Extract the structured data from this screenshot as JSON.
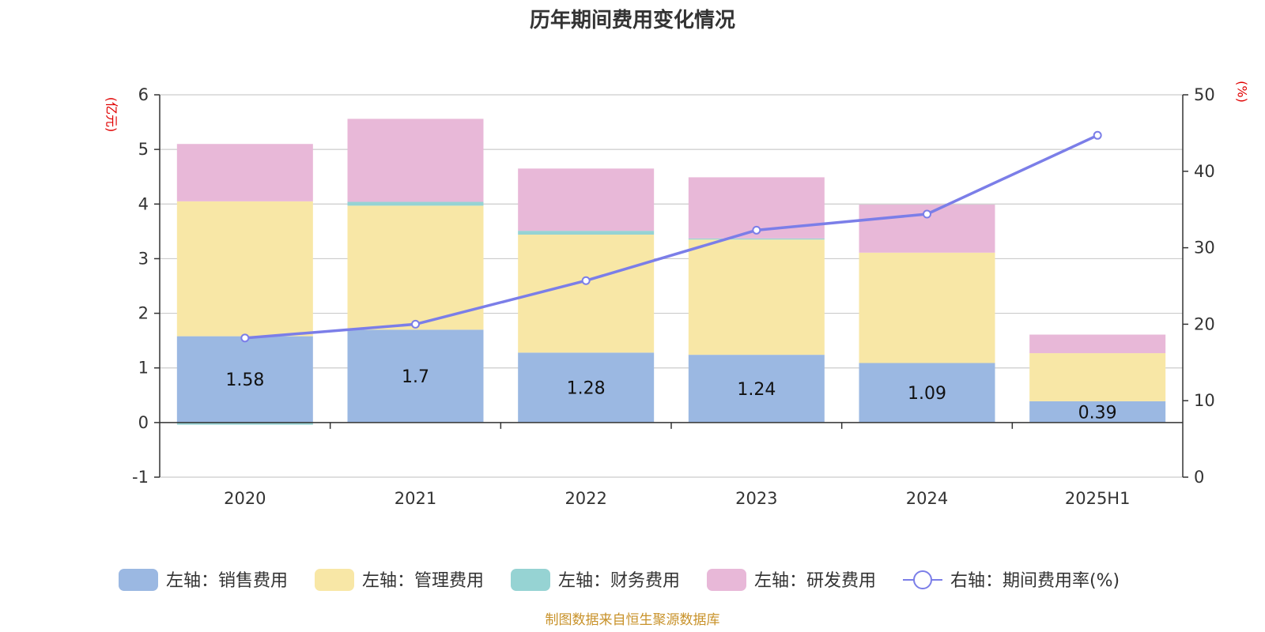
{
  "chart_data": {
    "type": "bar",
    "title": "历年期间费用变化情况",
    "categories": [
      "2020",
      "2021",
      "2022",
      "2023",
      "2024",
      "2025H1"
    ],
    "y_left": {
      "unit": "(亿元)",
      "range": [
        -1,
        6
      ],
      "ticks": [
        -1,
        0,
        1,
        2,
        3,
        4,
        5,
        6
      ]
    },
    "y_right": {
      "unit": "(%)",
      "range": [
        0,
        50
      ],
      "ticks": [
        0,
        10,
        20,
        30,
        40,
        50
      ]
    },
    "grid": true,
    "legend_position": "bottom",
    "series": [
      {
        "name": "左轴：销售费用",
        "type": "bar",
        "stack": true,
        "color": "#9bb8e2",
        "values": [
          1.58,
          1.7,
          1.28,
          1.24,
          1.09,
          0.39
        ],
        "data_labels": [
          "1.58",
          "1.7",
          "1.28",
          "1.24",
          "1.09",
          "0.39"
        ]
      },
      {
        "name": "左轴：管理费用",
        "type": "bar",
        "stack": true,
        "color": "#f8e7a6",
        "values": [
          2.47,
          2.27,
          2.16,
          2.11,
          2.02,
          0.88
        ]
      },
      {
        "name": "左轴：财务费用",
        "type": "bar",
        "stack": true,
        "color": "#96d3d3",
        "values": [
          -0.04,
          0.07,
          0.07,
          0.02,
          0.0,
          0.0
        ]
      },
      {
        "name": "左轴：研发费用",
        "type": "bar",
        "stack": true,
        "color": "#e8b8d8",
        "values": [
          1.05,
          1.52,
          1.14,
          1.12,
          0.88,
          0.34
        ]
      },
      {
        "name": "右轴：期间费用率(%)",
        "type": "line",
        "axis": "right",
        "color": "#7b7ee8",
        "values": [
          18.2,
          20.0,
          25.7,
          32.3,
          34.4,
          44.7
        ]
      }
    ],
    "source": "制图数据来自恒生聚源数据库"
  }
}
